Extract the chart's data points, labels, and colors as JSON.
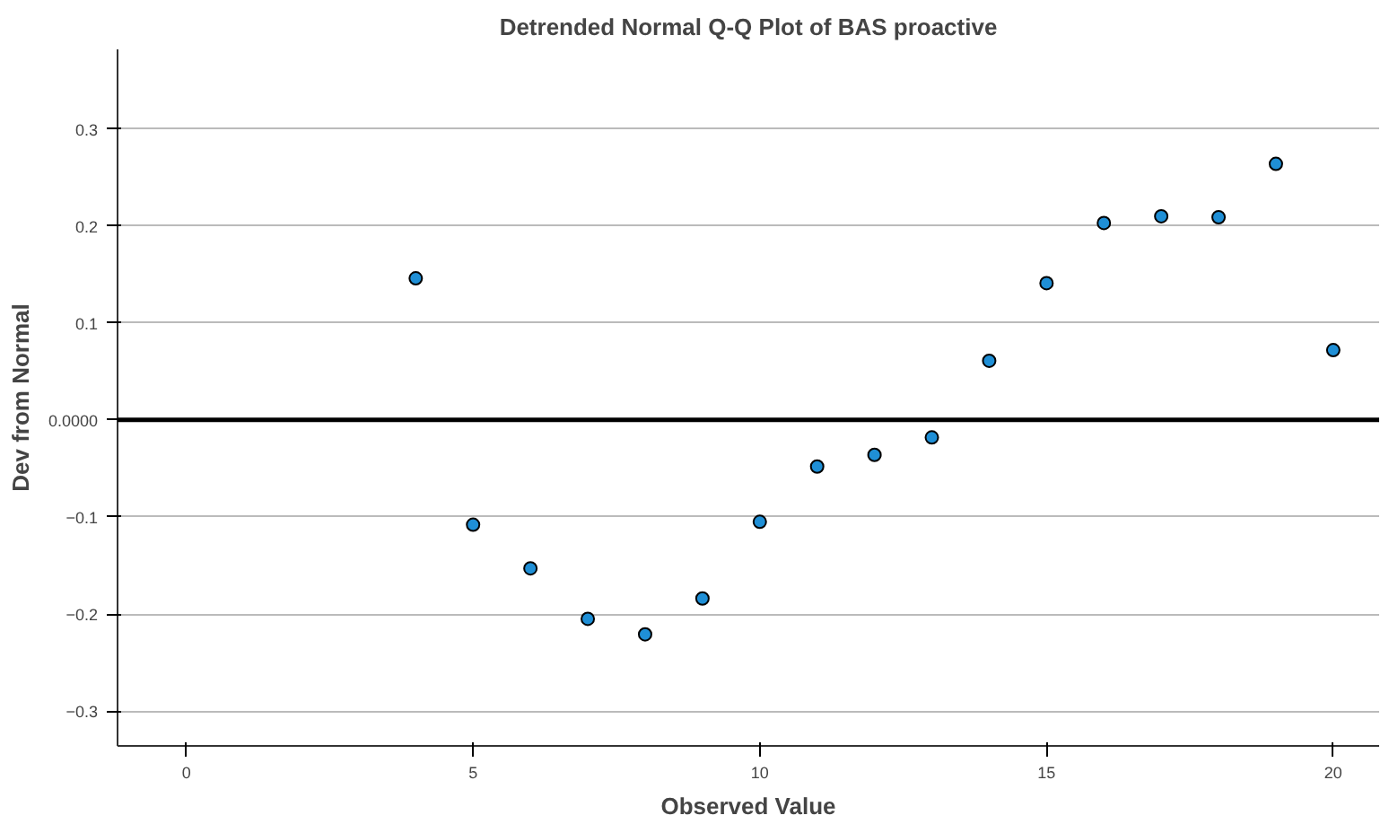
{
  "chart_data": {
    "type": "scatter",
    "title": "Detrended Normal Q-Q Plot of BAS proactive",
    "xlabel": "Observed Value",
    "ylabel": "Dev from Normal",
    "x": [
      4,
      5,
      6,
      7,
      8,
      9,
      10,
      11,
      12,
      13,
      14,
      15,
      16,
      17,
      18,
      19,
      20
    ],
    "values": [
      0.146,
      -0.108,
      -0.153,
      -0.205,
      -0.221,
      -0.184,
      -0.105,
      -0.048,
      -0.036,
      -0.018,
      0.061,
      0.141,
      0.203,
      0.21,
      0.209,
      0.264,
      0.072
    ],
    "color": "#1f8fd6",
    "marker": "circle",
    "xlim": [
      -1.2,
      20.8
    ],
    "xticks": [
      0,
      5,
      10,
      15,
      20
    ],
    "ylim": [
      -0.336,
      0.382
    ],
    "yticks": [
      -0.3,
      -0.2,
      -0.1,
      {
        "value": 0,
        "label": "0.0000"
      },
      0.1,
      0.2,
      0.3
    ],
    "grid": "y",
    "ref_lines": [
      {
        "axis": "y",
        "value": 0,
        "color": "#000000"
      }
    ]
  }
}
